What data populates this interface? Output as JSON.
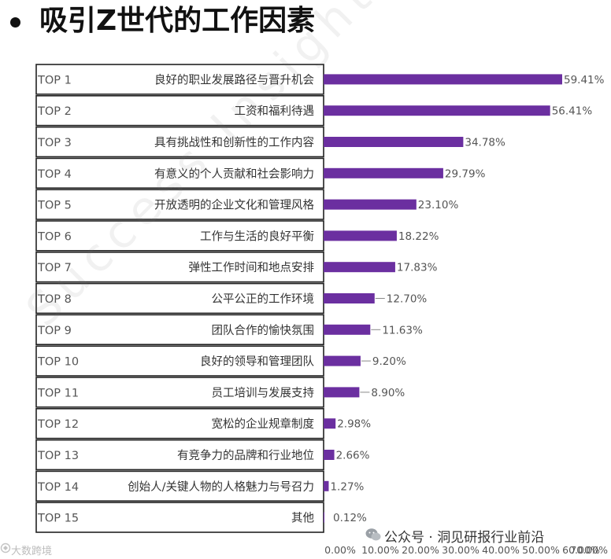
{
  "page": {
    "title": "吸引Z世代的工作因素",
    "wechat_credit": "公众号 · 洞见研报行业前沿",
    "corner_credit": "大数跨境",
    "watermark": "Success Insights",
    "bar_color": "#6b2fa0"
  },
  "chart_data": {
    "type": "bar",
    "orientation": "horizontal",
    "title": "",
    "xlabel": "",
    "ylabel": "",
    "xlim": [
      0,
      70
    ],
    "ranks": [
      "TOP 1",
      "TOP 2",
      "TOP 3",
      "TOP 4",
      "TOP 5",
      "TOP 6",
      "TOP 7",
      "TOP 8",
      "TOP 9",
      "TOP 10",
      "TOP 11",
      "TOP 12",
      "TOP 13",
      "TOP 14",
      "TOP 15"
    ],
    "categories": [
      "良好的职业发展路径与晋升机会",
      "工资和福利待遇",
      "具有挑战性和创新性的工作内容",
      "有意义的个人贡献和社会影响力",
      "开放透明的企业文化和管理风格",
      "工作与生活的良好平衡",
      "弹性工作时间和地点安排",
      "公平公正的工作环境",
      "团队合作的愉快氛围",
      "良好的领导和管理团队",
      "员工培训与发展支持",
      "宽松的企业规章制度",
      "有竞争力的品牌和行业地位",
      "创始人/关键人物的人格魅力与号召力",
      "其他"
    ],
    "values": [
      59.41,
      56.41,
      34.78,
      29.79,
      23.1,
      18.22,
      17.83,
      12.7,
      11.63,
      9.2,
      8.9,
      2.98,
      2.66,
      1.27,
      0.12
    ],
    "value_labels": [
      "59.41%",
      "56.41%",
      "34.78%",
      "29.79%",
      "23.10%",
      "18.22%",
      "17.83%",
      "12.70%",
      "11.63%",
      "9.20%",
      "8.90%",
      "2.98%",
      "2.66%",
      "1.27%",
      "0.12%"
    ],
    "x_ticks": [
      "0.00%",
      "10.00%",
      "20.00%",
      "30.00%",
      "40.00%",
      "50.00%",
      "60.00%",
      "70.00%"
    ],
    "grid": false,
    "legend": "none"
  }
}
